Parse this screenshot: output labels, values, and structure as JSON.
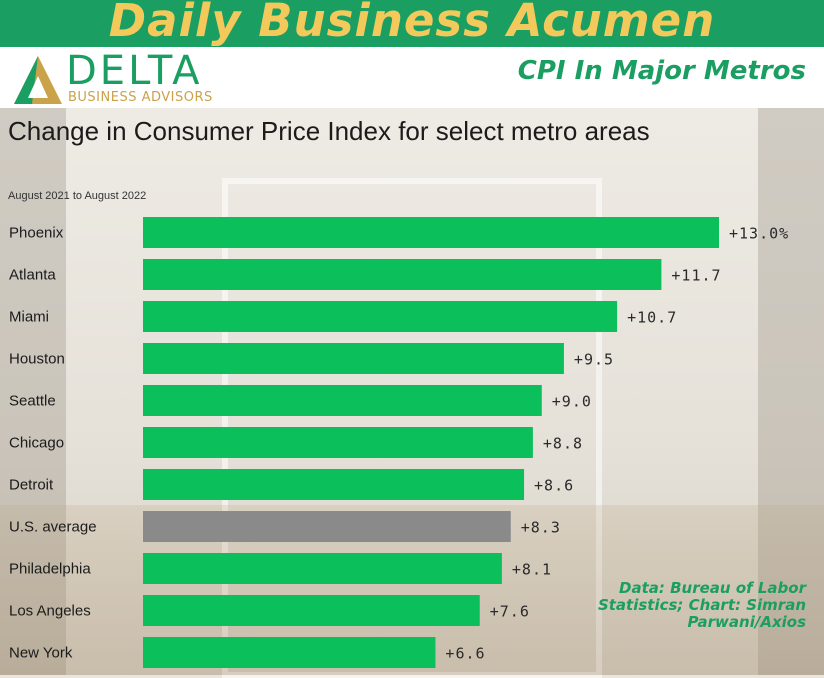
{
  "header": {
    "banner_title": "Daily Business Acumen",
    "logo_word": "DELTA",
    "logo_sub": "BUSINESS ADVISORS",
    "subtitle": "CPI In Major Metros"
  },
  "colors": {
    "banner": "#1a9e62",
    "banner_text": "#f2c95a",
    "bar": "#0bbf5a",
    "average_bar": "#8a8a8a"
  },
  "credit": "Data: Bureau of Labor Statistics; Chart: Simran Parwani/Axios",
  "chart_data": {
    "type": "bar",
    "orientation": "horizontal",
    "title": "Change in Consumer Price Index for select metro areas",
    "subtitle": "August 2021 to August 2022",
    "categories": [
      "Phoenix",
      "Atlanta",
      "Miami",
      "Houston",
      "Seattle",
      "Chicago",
      "Detroit",
      "U.S. average",
      "Philadelphia",
      "Los Angeles",
      "New York"
    ],
    "values": [
      13.0,
      11.7,
      10.7,
      9.5,
      9.0,
      8.8,
      8.6,
      8.3,
      8.1,
      7.6,
      6.6
    ],
    "value_labels": [
      "+13.0%",
      "+11.7",
      "+10.7",
      "+9.5",
      "+9.0",
      "+8.8",
      "+8.6",
      "+8.3",
      "+8.1",
      "+7.6",
      "+6.6"
    ],
    "highlight": "U.S. average",
    "xlim": [
      0,
      13.0
    ],
    "grid": false,
    "legend": "none"
  }
}
